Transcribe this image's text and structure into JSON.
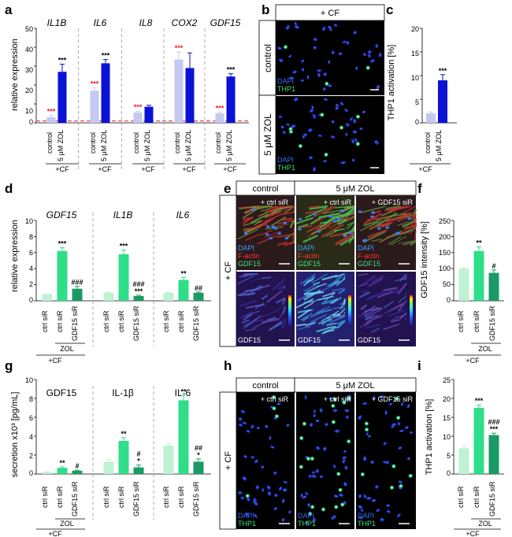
{
  "panels": {
    "a": {
      "letter": "a",
      "ylabel": "relative expression",
      "yticks": [
        "0",
        "10",
        "20",
        "30",
        "40",
        "50"
      ],
      "genes": [
        "IL1B",
        "IL6",
        "IL8",
        "COX2",
        "GDF15"
      ],
      "cats": [
        "control",
        "5 μM ZOL"
      ],
      "cond": "+CF"
    },
    "b": {
      "letter": "b",
      "header": "+ CF",
      "rows": [
        "control",
        "5 μM ZOL"
      ],
      "stain1": "DAPI",
      "stain2": "THP1"
    },
    "c": {
      "letter": "c",
      "ylabel": "THP1 activation [%]",
      "yticks": [
        "0",
        "5",
        "10",
        "15",
        "20"
      ],
      "cats": [
        "control",
        "5 μM ZOL"
      ],
      "cond": "+CF"
    },
    "d": {
      "letter": "d",
      "ylabel": "relative expression",
      "yticks": [
        "0",
        "2",
        "4",
        "6",
        "8",
        "10"
      ],
      "genes": [
        "GDF15",
        "IL1B",
        "IL6"
      ],
      "cats": [
        "ctrl siR",
        "ctrl siR",
        "GDF15 siR"
      ],
      "zol": "ZOL",
      "cond": "+CF"
    },
    "e": {
      "letter": "e",
      "header_left": "control",
      "header_right": "5 μM ZOL",
      "side": "+ CF",
      "cols": [
        "+ ctrl siR",
        "+ ctrl siR",
        "+ GDF15 siR"
      ],
      "stain1": "DAPI",
      "stain2": "F-actin",
      "stain3": "GDF15",
      "bottom_label": "GDF15"
    },
    "f": {
      "letter": "f",
      "ylabel": "GDF15 intensity [%]",
      "yticks": [
        "0",
        "50",
        "100",
        "150",
        "200",
        "250"
      ],
      "cats": [
        "ctrl siR",
        "ctrl siR",
        "GDF15 siR"
      ],
      "zol": "ZOL",
      "cond": "+CF"
    },
    "g": {
      "letter": "g",
      "ylabel": "secretion x10³ [pg/mL]",
      "yticks": [
        "0",
        "2",
        "4",
        "6",
        "8",
        "10"
      ],
      "titles": [
        "GDF15",
        "IL-1β",
        "IL-6"
      ],
      "cats": [
        "ctrl siR",
        "ctrl siR",
        "GDF15 siR"
      ],
      "zol": "ZOL",
      "cond": "+CF"
    },
    "h": {
      "letter": "h",
      "header_left": "control",
      "header_right": "5 μM ZOL",
      "side": "+ CF",
      "cols": [
        "+ ctrl siR",
        "+ ctrl siR",
        "+ GDF15 siR"
      ],
      "stain1": "DAPI",
      "stain2": "THP1"
    },
    "i": {
      "letter": "i",
      "ylabel": "THP1 activation [%]",
      "yticks": [
        "0",
        "5",
        "10",
        "15",
        "20",
        "25"
      ],
      "cats": [
        "ctrl siR",
        "ctrl siR",
        "GDF15 siR"
      ],
      "zol": "ZOL",
      "cond": "+CF"
    }
  },
  "chart_data": [
    {
      "id": "a",
      "type": "bar",
      "ylabel": "relative expression",
      "ylim": [
        0,
        50
      ],
      "categories": [
        "control",
        "5 μM ZOL"
      ],
      "groups": [
        {
          "gene": "IL1B",
          "values": [
            3,
            27
          ],
          "errors": [
            1,
            4
          ],
          "sig": [
            "***",
            "***"
          ]
        },
        {
          "gene": "IL6",
          "values": [
            17,
            31.5
          ],
          "errors": [
            1.5,
            2
          ],
          "sig": [
            "***",
            "***"
          ]
        },
        {
          "gene": "IL8",
          "values": [
            5.5,
            8.5
          ],
          "errors": [
            0.7,
            0.8
          ],
          "sig": [
            "***",
            ""
          ]
        },
        {
          "gene": "COX2",
          "values": [
            33.5,
            29
          ],
          "errors": [
            4,
            8
          ],
          "sig": [
            "***",
            ""
          ]
        },
        {
          "gene": "GDF15",
          "values": [
            5,
            24.5
          ],
          "errors": [
            0.7,
            1.5
          ],
          "sig": [
            "***",
            "***"
          ]
        }
      ],
      "reference_line": 1,
      "colors": {
        "control": "#c3c9f0",
        "zol": "#0a12d6",
        "sig_red": "#e8202a",
        "sig_black": "#000000"
      }
    },
    {
      "id": "c",
      "type": "bar",
      "ylabel": "THP1 activation [%]",
      "ylim": [
        0,
        20
      ],
      "categories": [
        "control",
        "5 μM ZOL"
      ],
      "values": [
        2,
        9
      ],
      "errors": [
        0.3,
        1.2
      ],
      "sig": [
        "",
        "***"
      ]
    },
    {
      "id": "d",
      "type": "bar",
      "ylabel": "relative expression",
      "ylim": [
        0,
        10
      ],
      "categories": [
        "ctrl siR",
        "ctrl siR",
        "GDF15 siR"
      ],
      "groups": [
        {
          "gene": "GDF15",
          "values": [
            0.8,
            6.2,
            1.5
          ],
          "errors": [
            0.05,
            0.4,
            0.3
          ],
          "sig": [
            "",
            "***",
            "###"
          ]
        },
        {
          "gene": "IL1B",
          "values": [
            1.0,
            5.8,
            0.6
          ],
          "errors": [
            0.05,
            0.5,
            0.1
          ],
          "sig": [
            "",
            "***",
            "###\n***"
          ]
        },
        {
          "gene": "IL6",
          "values": [
            1.0,
            2.6,
            1.0
          ],
          "errors": [
            0.05,
            0.3,
            0.1
          ],
          "sig": [
            "",
            "**",
            "##"
          ]
        }
      ],
      "colors": [
        "#bdf2d3",
        "#2fde88",
        "#1a9a64"
      ]
    },
    {
      "id": "f",
      "type": "bar",
      "ylabel": "GDF15 intensity [%]",
      "ylim": [
        0,
        250
      ],
      "categories": [
        "ctrl siR",
        "ctrl siR",
        "GDF15 siR"
      ],
      "values": [
        100,
        155,
        87
      ],
      "errors": [
        1,
        13,
        9
      ],
      "sig": [
        "",
        "**",
        "#"
      ]
    },
    {
      "id": "g",
      "type": "bar",
      "ylabel": "secretion x10³ [pg/mL]",
      "ylim": [
        0,
        10
      ],
      "categories": [
        "ctrl siR",
        "ctrl siR",
        "GDF15 siR"
      ],
      "groups": [
        {
          "name": "GDF15",
          "values": [
            0.2,
            0.65,
            0.35
          ],
          "errors": [
            0.05,
            0.1,
            0.05
          ],
          "sig": [
            "",
            "**",
            "#"
          ]
        },
        {
          "name": "IL-1β",
          "values": [
            1.3,
            3.5,
            0.7
          ],
          "errors": [
            0.25,
            0.35,
            0.25
          ],
          "sig": [
            "",
            "**",
            "#\n*"
          ]
        },
        {
          "name": "IL-6",
          "values": [
            3.0,
            7.8,
            1.3
          ],
          "errors": [
            0.2,
            0.5,
            0.3
          ],
          "sig": [
            "",
            "**",
            "##\n*"
          ]
        }
      ]
    },
    {
      "id": "i",
      "type": "bar",
      "ylabel": "THP1 activation [%]",
      "ylim": [
        0,
        25
      ],
      "categories": [
        "ctrl siR",
        "ctrl siR",
        "GDF15 siR"
      ],
      "values": [
        6.8,
        17.5,
        10.3
      ],
      "errors": [
        0.6,
        0.8,
        0.5
      ],
      "sig": [
        "",
        "***",
        "###\n***"
      ]
    }
  ]
}
